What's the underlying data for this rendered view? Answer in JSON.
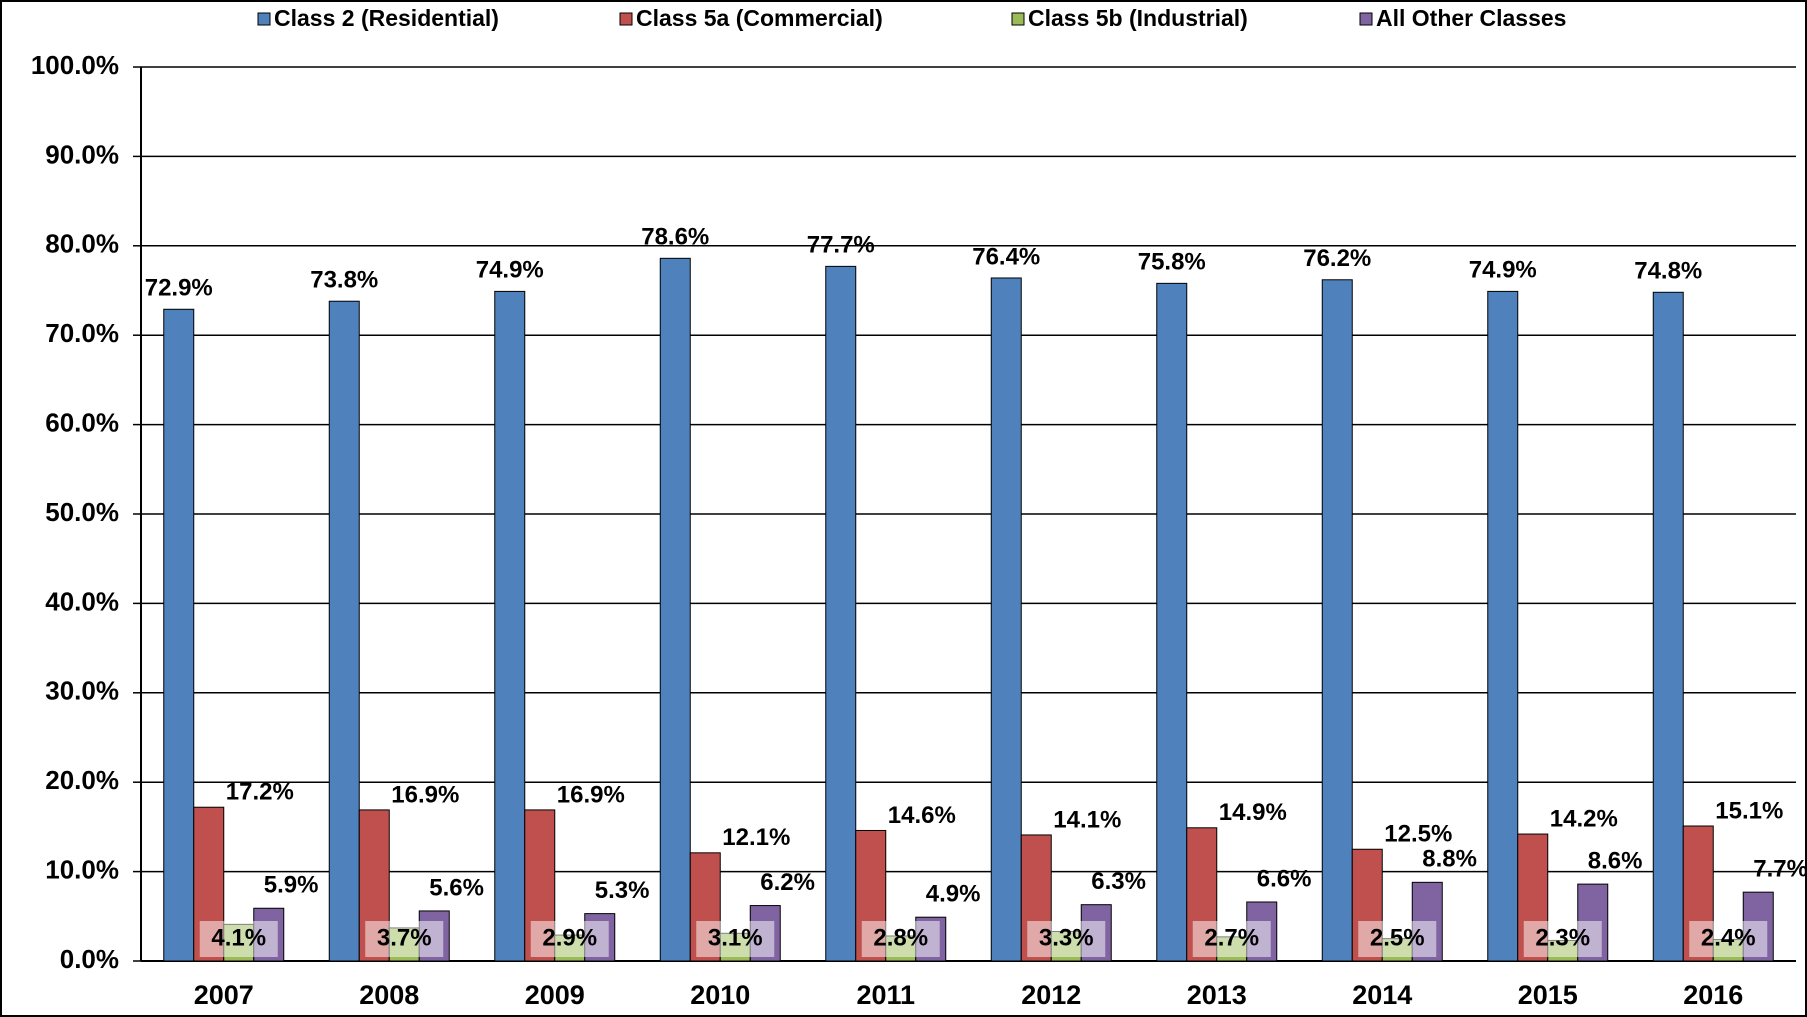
{
  "chart_data": {
    "type": "bar",
    "categories": [
      "2007",
      "2008",
      "2009",
      "2010",
      "2011",
      "2012",
      "2013",
      "2014",
      "2015",
      "2016"
    ],
    "series": [
      {
        "name": "Class 2 (Residential)",
        "color": "#4f81bd",
        "values": [
          72.9,
          73.8,
          74.9,
          78.6,
          77.7,
          76.4,
          75.8,
          76.2,
          74.9,
          74.8
        ],
        "value_labels": [
          "72.9%",
          "73.8%",
          "74.9%",
          "78.6%",
          "77.7%",
          "76.4%",
          "75.8%",
          "76.2%",
          "74.9%",
          "74.8%"
        ]
      },
      {
        "name": "Class 5a (Commercial)",
        "color": "#c0504d",
        "values": [
          17.2,
          16.9,
          16.9,
          12.1,
          14.6,
          14.1,
          14.9,
          12.5,
          14.2,
          15.1
        ],
        "value_labels": [
          "17.2%",
          "16.9%",
          "16.9%",
          "12.1%",
          "14.6%",
          "14.1%",
          "14.9%",
          "12.5%",
          "14.2%",
          "15.1%"
        ]
      },
      {
        "name": "Class 5b (Industrial)",
        "color": "#9bbb59",
        "values": [
          4.1,
          3.7,
          2.9,
          3.1,
          2.8,
          3.3,
          2.7,
          2.5,
          2.3,
          2.4
        ],
        "value_labels": [
          "4.1%",
          "3.7%",
          "2.9%",
          "3.1%",
          "2.8%",
          "3.3%",
          "2.7%",
          "2.5%",
          "2.3%",
          "2.4%"
        ]
      },
      {
        "name": "All Other Classes",
        "color": "#8064a2",
        "values": [
          5.9,
          5.6,
          5.3,
          6.2,
          4.9,
          6.3,
          6.6,
          8.8,
          8.6,
          7.7
        ],
        "value_labels": [
          "5.9%",
          "5.6%",
          "5.3%",
          "6.2%",
          "4.9%",
          "6.3%",
          "6.6%",
          "8.8%",
          "8.6%",
          "7.7%"
        ]
      }
    ],
    "ylim": [
      0,
      100
    ],
    "yticks": [
      {
        "value": 0,
        "label": "0.0%"
      },
      {
        "value": 10,
        "label": "10.0%"
      },
      {
        "value": 20,
        "label": "20.0%"
      },
      {
        "value": 30,
        "label": "30.0%"
      },
      {
        "value": 40,
        "label": "40.0%"
      },
      {
        "value": 50,
        "label": "50.0%"
      },
      {
        "value": 60,
        "label": "60.0%"
      },
      {
        "value": 70,
        "label": "70.0%"
      },
      {
        "value": 80,
        "label": "80.0%"
      },
      {
        "value": 90,
        "label": "90.0%"
      },
      {
        "value": 100,
        "label": "100.0%"
      }
    ],
    "grid": true,
    "legend": "top"
  }
}
